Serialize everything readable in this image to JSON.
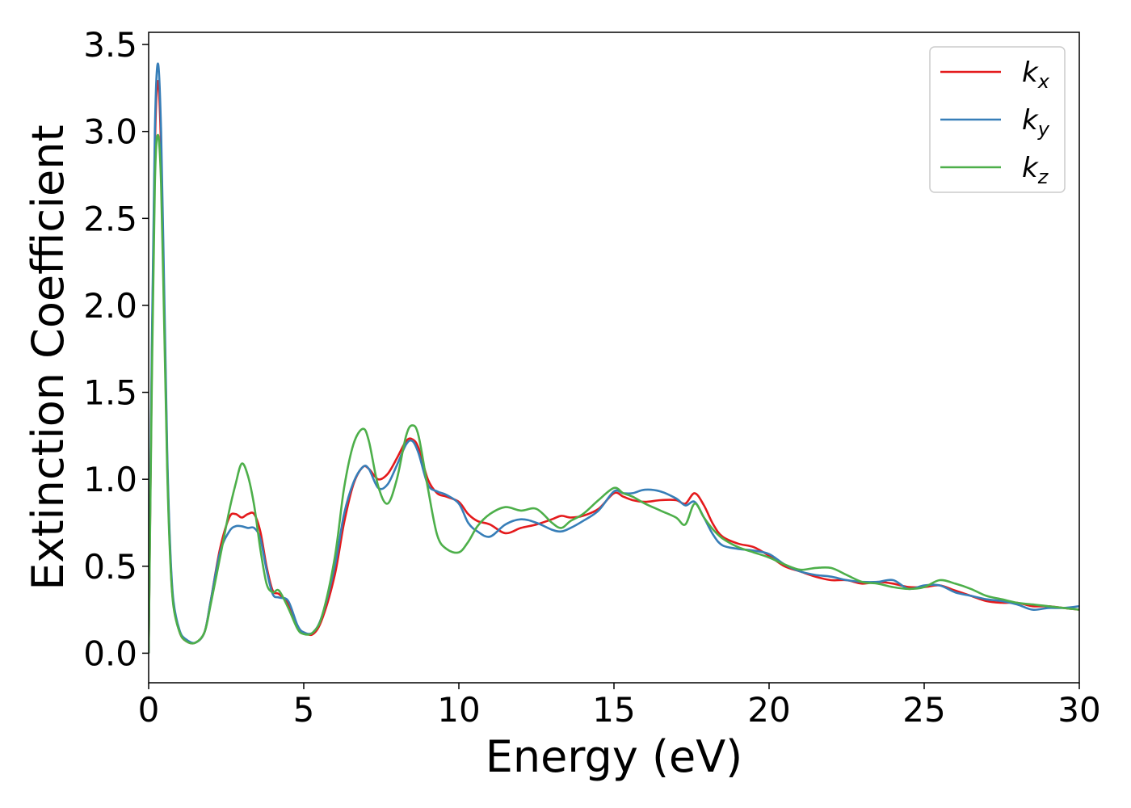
{
  "chart_data": {
    "type": "line",
    "xlabel": "Energy (eV)",
    "ylabel": "Extinction Coefficient",
    "xlim": [
      0,
      30
    ],
    "ylim": [
      -0.17,
      3.57
    ],
    "xticks": [
      0,
      5,
      10,
      15,
      20,
      25,
      30
    ],
    "yticks": [
      0.0,
      0.5,
      1.0,
      1.5,
      2.0,
      2.5,
      3.0,
      3.5
    ],
    "xtick_labels": [
      "0",
      "5",
      "10",
      "15",
      "20",
      "25",
      "30"
    ],
    "ytick_labels": [
      "0.0",
      "0.5",
      "1.0",
      "1.5",
      "2.0",
      "2.5",
      "3.0",
      "3.5"
    ],
    "grid": false,
    "legend_position": "top-right",
    "series": [
      {
        "name": "k_x",
        "legend_base": "k",
        "legend_sub": "x",
        "color": "#e41a1c",
        "x": [
          0,
          0.1,
          0.2,
          0.3,
          0.4,
          0.5,
          0.6,
          0.7,
          0.8,
          1.0,
          1.2,
          1.5,
          1.8,
          2.0,
          2.3,
          2.6,
          2.8,
          3.0,
          3.2,
          3.4,
          3.6,
          3.8,
          4.0,
          4.2,
          4.5,
          4.8,
          5.0,
          5.3,
          5.6,
          6.0,
          6.3,
          6.6,
          6.9,
          7.1,
          7.4,
          7.7,
          8.0,
          8.3,
          8.5,
          8.7,
          9.0,
          9.3,
          9.6,
          10.0,
          10.3,
          10.6,
          11.0,
          11.5,
          12.0,
          12.5,
          13.0,
          13.3,
          13.6,
          14.0,
          14.5,
          15.0,
          15.3,
          15.6,
          16.0,
          16.5,
          17.0,
          17.3,
          17.6,
          17.9,
          18.2,
          18.5,
          19.0,
          19.5,
          20.0,
          20.5,
          21.0,
          21.5,
          22.0,
          22.5,
          23.0,
          23.5,
          24.0,
          24.5,
          25.0,
          25.5,
          26.0,
          26.5,
          27.0,
          27.5,
          28.0,
          28.5,
          29.0,
          29.5,
          30.0
        ],
        "y": [
          0.0,
          1.6,
          2.9,
          3.29,
          2.9,
          2.0,
          1.1,
          0.55,
          0.28,
          0.12,
          0.07,
          0.06,
          0.12,
          0.3,
          0.6,
          0.78,
          0.8,
          0.78,
          0.8,
          0.8,
          0.7,
          0.5,
          0.36,
          0.34,
          0.28,
          0.15,
          0.12,
          0.11,
          0.2,
          0.45,
          0.75,
          0.97,
          1.07,
          1.06,
          1.0,
          1.03,
          1.12,
          1.22,
          1.23,
          1.18,
          1.0,
          0.92,
          0.9,
          0.87,
          0.8,
          0.76,
          0.74,
          0.69,
          0.72,
          0.74,
          0.77,
          0.79,
          0.78,
          0.79,
          0.83,
          0.92,
          0.9,
          0.88,
          0.87,
          0.88,
          0.88,
          0.86,
          0.92,
          0.85,
          0.74,
          0.67,
          0.63,
          0.61,
          0.56,
          0.5,
          0.47,
          0.44,
          0.42,
          0.42,
          0.4,
          0.41,
          0.4,
          0.38,
          0.38,
          0.39,
          0.36,
          0.33,
          0.3,
          0.29,
          0.29,
          0.27,
          0.27,
          0.26,
          0.25
        ]
      },
      {
        "name": "k_y",
        "legend_base": "k",
        "legend_sub": "y",
        "color": "#377eb8",
        "x": [
          0,
          0.1,
          0.2,
          0.3,
          0.4,
          0.5,
          0.6,
          0.7,
          0.8,
          1.0,
          1.2,
          1.5,
          1.8,
          2.0,
          2.3,
          2.6,
          2.8,
          3.0,
          3.2,
          3.4,
          3.6,
          3.8,
          4.0,
          4.2,
          4.5,
          4.8,
          5.0,
          5.3,
          5.6,
          6.0,
          6.3,
          6.6,
          6.9,
          7.1,
          7.4,
          7.7,
          8.0,
          8.3,
          8.5,
          8.7,
          9.0,
          9.3,
          9.6,
          10.0,
          10.3,
          10.6,
          11.0,
          11.5,
          12.0,
          12.5,
          13.0,
          13.3,
          13.6,
          14.0,
          14.5,
          15.0,
          15.3,
          15.6,
          16.0,
          16.5,
          17.0,
          17.3,
          17.6,
          17.9,
          18.2,
          18.5,
          19.0,
          19.5,
          20.0,
          20.5,
          21.0,
          21.5,
          22.0,
          22.5,
          23.0,
          23.5,
          24.0,
          24.5,
          25.0,
          25.5,
          26.0,
          26.5,
          27.0,
          27.5,
          28.0,
          28.5,
          29.0,
          29.5,
          30.0
        ],
        "y": [
          0.0,
          1.7,
          3.0,
          3.39,
          3.0,
          2.1,
          1.15,
          0.58,
          0.3,
          0.13,
          0.08,
          0.06,
          0.12,
          0.3,
          0.58,
          0.7,
          0.73,
          0.73,
          0.72,
          0.72,
          0.66,
          0.48,
          0.34,
          0.32,
          0.3,
          0.16,
          0.12,
          0.12,
          0.22,
          0.5,
          0.8,
          0.98,
          1.07,
          1.06,
          0.95,
          0.97,
          1.08,
          1.2,
          1.22,
          1.15,
          0.97,
          0.93,
          0.91,
          0.86,
          0.75,
          0.7,
          0.67,
          0.74,
          0.77,
          0.75,
          0.71,
          0.7,
          0.72,
          0.76,
          0.82,
          0.93,
          0.92,
          0.92,
          0.94,
          0.93,
          0.89,
          0.85,
          0.87,
          0.78,
          0.68,
          0.62,
          0.6,
          0.59,
          0.57,
          0.51,
          0.47,
          0.45,
          0.44,
          0.42,
          0.41,
          0.41,
          0.42,
          0.37,
          0.39,
          0.39,
          0.35,
          0.33,
          0.31,
          0.3,
          0.28,
          0.25,
          0.26,
          0.26,
          0.27
        ]
      },
      {
        "name": "k_z",
        "legend_base": "k",
        "legend_sub": "z",
        "color": "#4daf4a",
        "x": [
          0,
          0.1,
          0.2,
          0.3,
          0.4,
          0.5,
          0.6,
          0.7,
          0.8,
          1.0,
          1.2,
          1.5,
          1.8,
          2.0,
          2.3,
          2.6,
          2.8,
          3.0,
          3.2,
          3.4,
          3.6,
          3.8,
          4.0,
          4.2,
          4.5,
          4.8,
          5.0,
          5.3,
          5.6,
          6.0,
          6.3,
          6.6,
          6.9,
          7.1,
          7.4,
          7.7,
          8.0,
          8.3,
          8.5,
          8.7,
          9.0,
          9.3,
          9.6,
          10.0,
          10.3,
          10.6,
          11.0,
          11.5,
          12.0,
          12.5,
          13.0,
          13.3,
          13.6,
          14.0,
          14.5,
          15.0,
          15.3,
          15.6,
          16.0,
          16.5,
          17.0,
          17.3,
          17.6,
          17.9,
          18.2,
          18.5,
          19.0,
          19.5,
          20.0,
          20.5,
          21.0,
          21.5,
          22.0,
          22.5,
          23.0,
          23.5,
          24.0,
          24.5,
          25.0,
          25.5,
          26.0,
          26.5,
          27.0,
          27.5,
          28.0,
          28.5,
          29.0,
          29.5,
          30.0
        ],
        "y": [
          0.0,
          1.5,
          2.7,
          2.98,
          2.7,
          1.9,
          1.05,
          0.52,
          0.27,
          0.12,
          0.07,
          0.06,
          0.12,
          0.28,
          0.55,
          0.82,
          0.97,
          1.09,
          1.02,
          0.85,
          0.6,
          0.4,
          0.35,
          0.36,
          0.26,
          0.14,
          0.11,
          0.12,
          0.22,
          0.55,
          0.95,
          1.2,
          1.29,
          1.22,
          0.96,
          0.86,
          1.0,
          1.25,
          1.31,
          1.25,
          0.95,
          0.68,
          0.6,
          0.58,
          0.64,
          0.73,
          0.8,
          0.84,
          0.82,
          0.83,
          0.75,
          0.72,
          0.76,
          0.8,
          0.88,
          0.95,
          0.92,
          0.9,
          0.86,
          0.82,
          0.78,
          0.74,
          0.86,
          0.78,
          0.71,
          0.66,
          0.61,
          0.58,
          0.55,
          0.51,
          0.48,
          0.49,
          0.49,
          0.45,
          0.41,
          0.4,
          0.38,
          0.37,
          0.38,
          0.42,
          0.4,
          0.37,
          0.33,
          0.31,
          0.29,
          0.28,
          0.27,
          0.26,
          0.25
        ]
      }
    ]
  }
}
